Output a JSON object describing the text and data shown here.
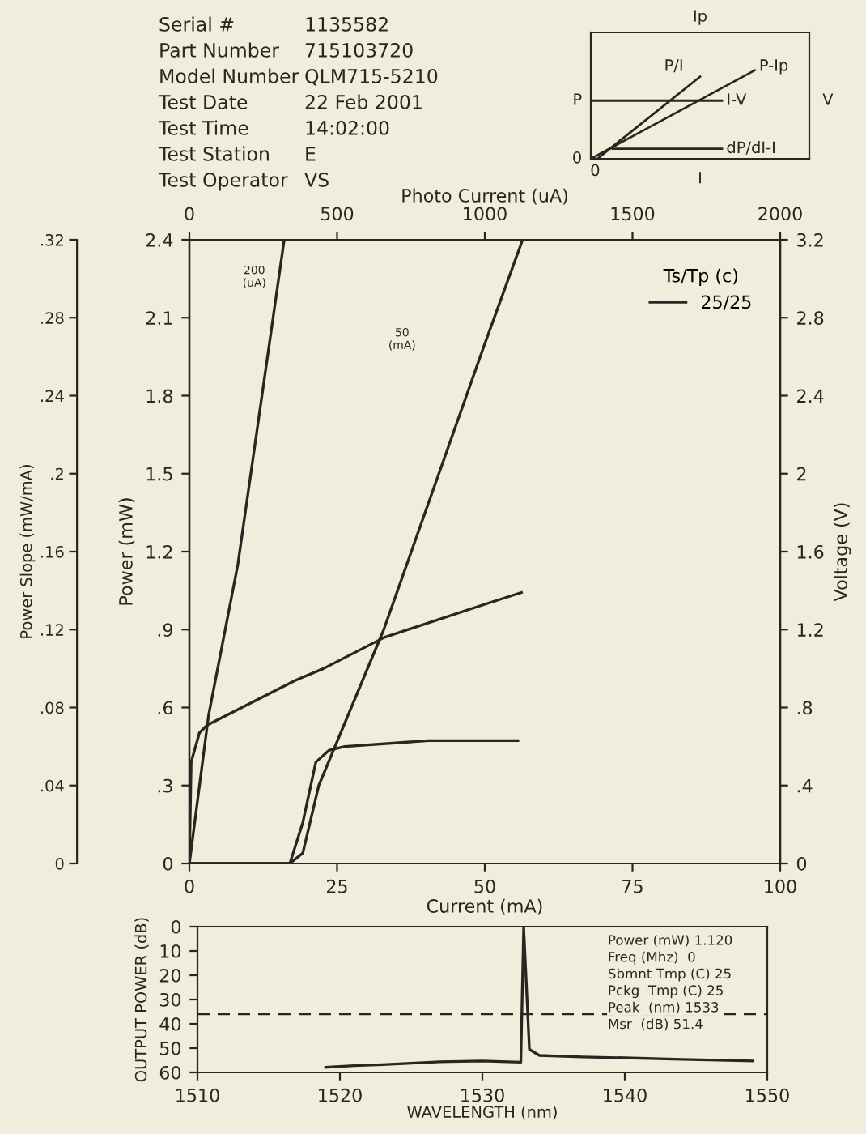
{
  "chart_data": [
    {
      "type": "other",
      "annotations": [
        "Serial #",
        "1135582",
        "Part Number",
        "715103720",
        "Model Number",
        "QLM715-5210",
        "Test Date",
        "22 Feb 2001",
        "Test Time",
        "14:02:00",
        "Test Station",
        "E",
        "Test Operator",
        "VS"
      ]
    },
    {
      "type": "other",
      "annotations": [
        "Ip",
        "P/I",
        "P-Ip",
        "P",
        "I-V",
        "V",
        "0",
        "0",
        "dP/dI-I",
        "I"
      ]
    },
    {
      "type": "line",
      "xlabel": "Current (mA)",
      "ylabel": "Power (mW)",
      "y2label": "Voltage (V)",
      "y3label": "Power Slope (mW/mA)",
      "x2label": "Photo Current (uA)",
      "legend_title": "Ts/Tp (c)",
      "legend": "top right",
      "grid": false,
      "xlim": [
        0,
        100
      ],
      "xticks": [
        0,
        25,
        50,
        75,
        100
      ],
      "x2lim": [
        0,
        2000
      ],
      "x2ticks": [
        0,
        500,
        1000,
        1500,
        2000
      ],
      "ylim": [
        0,
        2.4
      ],
      "yticks": [
        0,
        {
          "value": 0.3,
          "label": ".3"
        },
        {
          "value": 0.6,
          "label": ".6"
        },
        {
          "value": 0.9,
          "label": ".9"
        },
        1.2,
        1.5,
        1.8,
        2.1,
        2.4
      ],
      "y2lim": [
        0,
        3.2
      ],
      "y2ticks": [
        0,
        {
          "value": 0.4,
          "label": ".4"
        },
        {
          "value": 0.8,
          "label": ".8"
        },
        1.2,
        1.6,
        2,
        2.4,
        2.8,
        3.2
      ],
      "y3lim": [
        0,
        0.32
      ],
      "y3ticks": [
        0,
        {
          "value": 0.04,
          "label": ".04"
        },
        {
          "value": 0.08,
          "label": ".08"
        },
        {
          "value": 0.12,
          "label": ".12"
        },
        {
          "value": 0.16,
          "label": ".16"
        },
        {
          "value": 0.2,
          "label": ".2"
        },
        {
          "value": 0.24,
          "label": ".24"
        },
        {
          "value": 0.28,
          "label": ".28"
        },
        {
          "value": 0.32,
          "label": ".32"
        }
      ],
      "series": [
        {
          "name": "25/25",
          "color": "#2a2520",
          "x": [
            0,
            17,
            19.2,
            21.9,
            27.4,
            32.9,
            50,
            56.4
          ],
          "values": [
            0,
            0,
            0.04,
            0.3,
            0.6,
            0.9,
            2.0,
            2.4
          ]
        },
        {
          "axis": "x2",
          "color": "#2a2520",
          "x": [
            0,
            65,
            164,
            321
          ],
          "values": [
            0,
            0.57,
            1.15,
            2.4
          ]
        },
        {
          "axis": "y2",
          "color": "#2a2520",
          "x": [
            0,
            0.3,
            1.7,
            3,
            18,
            22.7,
            33,
            50,
            56.2
          ],
          "values": [
            0,
            0.52,
            0.67,
            0.71,
            0.94,
            1.0,
            1.16,
            1.33,
            1.39
          ]
        },
        {
          "axis": "y3",
          "color": "#2a2520",
          "x": [
            0,
            17,
            19.2,
            21.4,
            23.6,
            26.3,
            40.5,
            55.6
          ],
          "values": [
            0,
            0,
            0.021,
            0.052,
            0.058,
            0.06,
            0.063,
            0.063
          ]
        }
      ],
      "annotations": [
        "200\n(uA)",
        "50\n(mA)"
      ]
    },
    {
      "type": "line",
      "xlabel": "WAVELENGTH (nm)",
      "ylabel": "OUTPUT POWER (dB)",
      "grid": false,
      "xlim": [
        1510,
        1550
      ],
      "xticks": [
        1510,
        1520,
        1530,
        1540,
        1550
      ],
      "ylim": [
        60,
        0
      ],
      "yticks": [
        0,
        10,
        20,
        30,
        40,
        50,
        60
      ],
      "ref_lines": [
        {
          "axis": "y",
          "value": 36,
          "line_style": "dashed"
        }
      ],
      "series": [
        {
          "color": "#2a2520",
          "x": [
            1519,
            1521,
            1523,
            1525,
            1527,
            1530,
            1532.7,
            1532.9,
            1533.3,
            1534,
            1537,
            1540,
            1544,
            1549
          ],
          "values": [
            57.9,
            57.2,
            56.8,
            56.2,
            55.6,
            55.3,
            55.8,
            0,
            50.5,
            53,
            53.6,
            54,
            54.6,
            55.3
          ]
        }
      ],
      "annotations": [
        "Power (mW) 1.120",
        "Freq (Mhz)  0",
        "Sbmnt Tmp (C) 25",
        "Pckg  Tmp (C) 25",
        "Peak  (nm) 1533",
        "Msr  (dB) 51.4"
      ]
    }
  ]
}
